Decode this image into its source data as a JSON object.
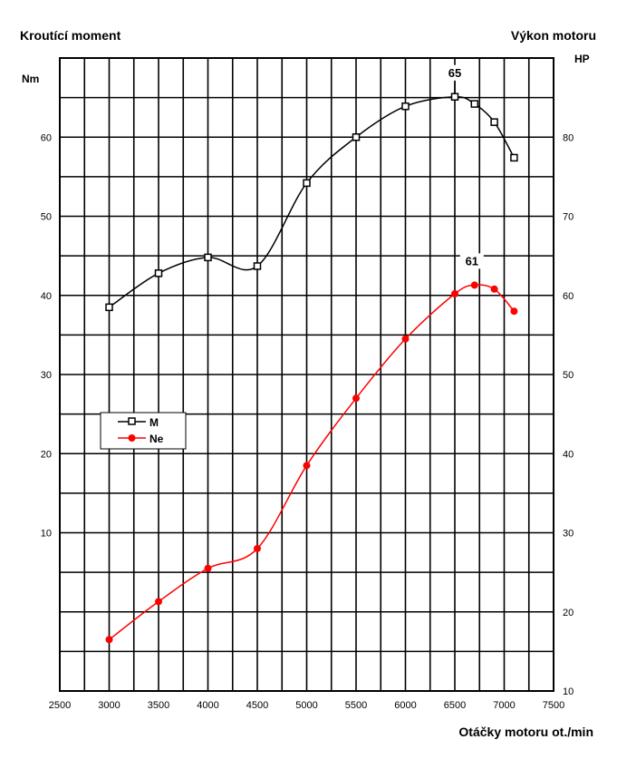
{
  "chart_data": {
    "type": "line",
    "left_title": "Kroutící moment",
    "right_title": "Výkon motoru",
    "left_unit": "Nm",
    "right_unit": "HP",
    "xlabel": "Otáčky motoru ot./min",
    "x_ticks": [
      "2500",
      "3000",
      "3500",
      "4000",
      "4500",
      "5000",
      "5500",
      "6000",
      "6500",
      "7000",
      "7500"
    ],
    "y_left_ticks": [
      "10",
      "20",
      "30",
      "40",
      "50",
      "60"
    ],
    "y_right_ticks": [
      "10",
      "20",
      "30",
      "40",
      "50",
      "60",
      "70",
      "80"
    ],
    "xlim": [
      2500,
      7500
    ],
    "ylim_left": [
      -10,
      70
    ],
    "ylim_right": [
      10,
      90
    ],
    "grid": true,
    "legend_position": "left-middle",
    "series": [
      {
        "name": "M",
        "axis": "left",
        "color": "#000000",
        "marker": "open-square",
        "x": [
          3000,
          3500,
          4000,
          4500,
          5000,
          5500,
          6000,
          6500,
          6700,
          6900,
          7100
        ],
        "y": [
          38.5,
          42.8,
          44.8,
          43.7,
          54.2,
          60.0,
          63.9,
          65.1,
          64.2,
          61.9,
          57.4
        ]
      },
      {
        "name": "Ne",
        "axis": "right",
        "color": "#ff0000",
        "marker": "filled-circle",
        "x": [
          3000,
          3500,
          4000,
          4500,
          5000,
          5500,
          6000,
          6500,
          6700,
          6900,
          7100
        ],
        "y": [
          16.5,
          21.3,
          25.5,
          28.0,
          38.5,
          47.0,
          54.5,
          60.2,
          61.3,
          60.8,
          58.0
        ]
      }
    ],
    "annotations": [
      {
        "text": "65",
        "series": "M",
        "color": "#000000"
      },
      {
        "text": "61",
        "series": "Ne",
        "color": "#ff0000"
      }
    ]
  }
}
